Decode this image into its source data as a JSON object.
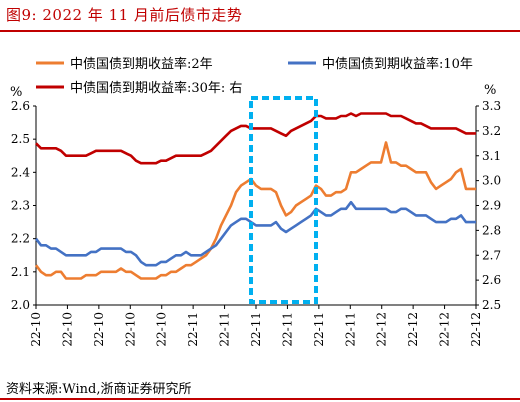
{
  "figure": {
    "title": "图9:   2022 年 11 月前后债市走势",
    "source": "资料来源:Wind,浙商证券研究所"
  },
  "colors": {
    "title": "#c00000",
    "highlight": "#00b0f0"
  },
  "chart_data": {
    "type": "line",
    "x_tick_labels": [
      "22-10",
      "22-10",
      "22-10",
      "22-10",
      "22-10",
      "22-11",
      "22-11",
      "22-11",
      "22-11",
      "22-11",
      "22-11",
      "22-12",
      "22-12",
      "22-12",
      "22-12"
    ],
    "left_axis": {
      "unit": "%",
      "range": [
        2.0,
        2.6
      ],
      "ticks": [
        "2.0",
        "2.1",
        "2.2",
        "2.3",
        "2.4",
        "2.5",
        "2.6"
      ]
    },
    "right_axis": {
      "unit": "%",
      "range": [
        2.5,
        3.3
      ],
      "ticks": [
        "2.5",
        "2.6",
        "2.7",
        "2.8",
        "2.9",
        "3.0",
        "3.1",
        "3.2",
        "3.3"
      ]
    },
    "legend_position": "top",
    "annotation": {
      "label": "右",
      "highlight_index_range": [
        43,
        56
      ]
    },
    "grid": false,
    "series": [
      {
        "name": "中债国债到期收益率:2年",
        "axis": "left",
        "color": "#ed7d31",
        "values": [
          2.12,
          2.1,
          2.09,
          2.09,
          2.1,
          2.1,
          2.08,
          2.08,
          2.08,
          2.08,
          2.09,
          2.09,
          2.09,
          2.1,
          2.1,
          2.1,
          2.1,
          2.11,
          2.1,
          2.1,
          2.09,
          2.08,
          2.08,
          2.08,
          2.08,
          2.09,
          2.09,
          2.1,
          2.1,
          2.11,
          2.12,
          2.12,
          2.13,
          2.14,
          2.15,
          2.17,
          2.2,
          2.24,
          2.27,
          2.3,
          2.34,
          2.36,
          2.37,
          2.38,
          2.36,
          2.35,
          2.35,
          2.35,
          2.34,
          2.3,
          2.27,
          2.28,
          2.3,
          2.31,
          2.32,
          2.33,
          2.36,
          2.35,
          2.33,
          2.33,
          2.34,
          2.34,
          2.35,
          2.4,
          2.4,
          2.41,
          2.42,
          2.43,
          2.43,
          2.43,
          2.49,
          2.43,
          2.43,
          2.42,
          2.42,
          2.41,
          2.4,
          2.4,
          2.4,
          2.37,
          2.35,
          2.36,
          2.37,
          2.38,
          2.4,
          2.41,
          2.35,
          2.35,
          2.35
        ]
      },
      {
        "name": "中债国债到期收益率:10年",
        "axis": "left",
        "color": "#4472c4",
        "values": [
          2.2,
          2.18,
          2.18,
          2.17,
          2.17,
          2.16,
          2.15,
          2.15,
          2.15,
          2.15,
          2.15,
          2.16,
          2.16,
          2.17,
          2.17,
          2.17,
          2.17,
          2.17,
          2.16,
          2.16,
          2.15,
          2.13,
          2.12,
          2.12,
          2.12,
          2.13,
          2.13,
          2.14,
          2.15,
          2.15,
          2.16,
          2.15,
          2.15,
          2.15,
          2.16,
          2.17,
          2.18,
          2.2,
          2.22,
          2.24,
          2.25,
          2.26,
          2.26,
          2.25,
          2.24,
          2.24,
          2.24,
          2.24,
          2.25,
          2.23,
          2.22,
          2.23,
          2.24,
          2.25,
          2.26,
          2.27,
          2.29,
          2.28,
          2.27,
          2.27,
          2.28,
          2.29,
          2.29,
          2.31,
          2.29,
          2.29,
          2.29,
          2.29,
          2.29,
          2.29,
          2.29,
          2.28,
          2.28,
          2.29,
          2.29,
          2.28,
          2.27,
          2.27,
          2.27,
          2.26,
          2.25,
          2.25,
          2.25,
          2.26,
          2.26,
          2.27,
          2.25,
          2.25,
          2.25
        ]
      },
      {
        "name": "中债国债到期收益率:30年:  右",
        "axis": "right",
        "color": "#c00000",
        "values": [
          3.15,
          3.13,
          3.13,
          3.13,
          3.13,
          3.12,
          3.1,
          3.1,
          3.1,
          3.1,
          3.1,
          3.11,
          3.12,
          3.12,
          3.12,
          3.12,
          3.12,
          3.12,
          3.11,
          3.1,
          3.08,
          3.07,
          3.07,
          3.07,
          3.07,
          3.08,
          3.08,
          3.09,
          3.1,
          3.1,
          3.1,
          3.1,
          3.1,
          3.1,
          3.11,
          3.12,
          3.14,
          3.16,
          3.18,
          3.2,
          3.21,
          3.22,
          3.22,
          3.21,
          3.21,
          3.21,
          3.21,
          3.21,
          3.2,
          3.19,
          3.18,
          3.2,
          3.21,
          3.22,
          3.23,
          3.24,
          3.26,
          3.26,
          3.25,
          3.25,
          3.25,
          3.26,
          3.26,
          3.27,
          3.26,
          3.27,
          3.27,
          3.27,
          3.27,
          3.27,
          3.27,
          3.26,
          3.26,
          3.26,
          3.25,
          3.24,
          3.23,
          3.23,
          3.22,
          3.21,
          3.21,
          3.21,
          3.21,
          3.21,
          3.21,
          3.2,
          3.19,
          3.19,
          3.19
        ]
      }
    ]
  }
}
